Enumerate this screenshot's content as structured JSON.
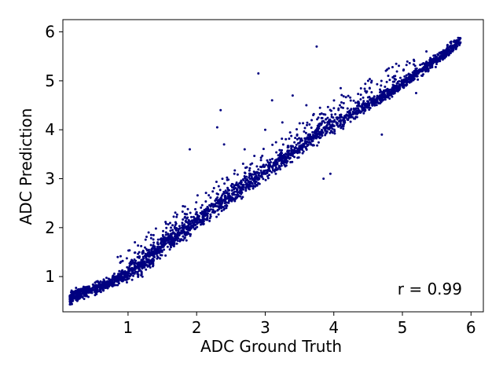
{
  "chart_data": {
    "type": "scatter",
    "title": "",
    "xlabel": "ADC Ground Truth",
    "ylabel": "ADC Prediction",
    "xlim": [
      0.05,
      6.18
    ],
    "ylim": [
      0.28,
      6.25
    ],
    "xticks": [
      "1",
      "2",
      "3",
      "4",
      "5",
      "6"
    ],
    "yticks": [
      "1",
      "2",
      "3",
      "4",
      "5",
      "6"
    ],
    "xtick_values": [
      1,
      2,
      3,
      4,
      5,
      6
    ],
    "ytick_values": [
      1,
      2,
      3,
      4,
      5,
      6
    ],
    "grid": false,
    "marker_color": "#000080",
    "annotation": "r = 0.99",
    "correlation": 0.99,
    "series": [
      {
        "x": [
          0.15,
          0.2,
          0.3,
          0.4,
          0.5,
          0.6,
          0.7,
          0.8,
          0.9,
          1.0,
          1.1,
          1.2,
          1.3,
          1.4,
          1.5,
          1.6,
          1.7,
          1.8,
          1.9,
          2.0,
          2.1,
          2.2,
          2.3,
          2.4,
          2.5,
          2.6,
          2.7,
          2.8,
          2.9,
          3.0,
          3.1,
          3.2,
          3.3,
          3.4,
          3.5,
          3.6,
          3.7,
          3.8,
          3.9,
          4.0,
          4.1,
          4.2,
          4.3,
          4.4,
          4.5,
          4.6,
          4.7,
          4.8,
          4.9,
          5.0,
          5.1,
          5.2,
          5.3,
          5.4,
          5.5,
          5.6,
          5.7,
          5.8,
          5.9
        ],
        "y": [
          0.55,
          0.6,
          0.65,
          0.7,
          0.75,
          0.8,
          0.85,
          0.9,
          0.98,
          1.05,
          1.15,
          1.25,
          1.38,
          1.5,
          1.62,
          1.75,
          1.85,
          1.95,
          2.05,
          2.15,
          2.25,
          2.35,
          2.45,
          2.55,
          2.65,
          2.75,
          2.85,
          2.95,
          3.05,
          3.15,
          3.25,
          3.35,
          3.45,
          3.55,
          3.65,
          3.75,
          3.85,
          3.95,
          4.05,
          4.12,
          4.2,
          4.28,
          4.36,
          4.44,
          4.52,
          4.6,
          4.68,
          4.76,
          4.85,
          4.95,
          5.05,
          5.15,
          5.25,
          5.35,
          5.45,
          5.55,
          5.65,
          5.75,
          5.95
        ]
      }
    ],
    "outliers": {
      "x": [
        0.85,
        1.1,
        1.3,
        1.9,
        2.3,
        2.35,
        2.4,
        2.55,
        2.7,
        2.9,
        3.0,
        3.1,
        3.25,
        3.4,
        3.6,
        3.7,
        3.75,
        3.85,
        3.95,
        4.1,
        4.5,
        4.7,
        5.2,
        5.35
      ],
      "y": [
        1.4,
        1.7,
        1.9,
        3.6,
        4.05,
        4.4,
        3.7,
        3.1,
        3.6,
        5.15,
        4.0,
        4.6,
        4.15,
        4.7,
        4.5,
        4.3,
        5.7,
        3.0,
        3.1,
        4.85,
        5.0,
        3.9,
        4.75,
        5.6
      ]
    }
  }
}
